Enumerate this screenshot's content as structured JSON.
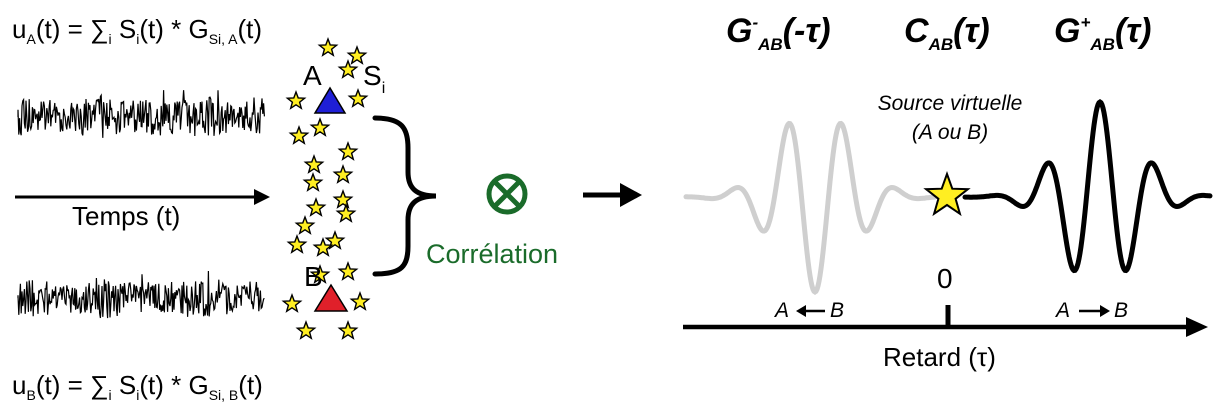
{
  "equations": {
    "uA_lhs": "u",
    "uA_sub": "A",
    "uA_rest": "(t) = ∑",
    "uA_i": "i",
    "uA_mid": "S",
    "uA_i2": "i",
    "uA_tail": "(t) * G",
    "uA_gsub": "Si, A",
    "uA_end": "(t)",
    "uB_lhs": "u",
    "uB_sub": "B",
    "uB_rest": "(t) = ∑",
    "uB_i": "i",
    "uB_mid": "S",
    "uB_i2": "i",
    "uB_tail": "(t) * G",
    "uB_gsub": "Si, B",
    "uB_end": "(t)"
  },
  "labels": {
    "time_axis": "Temps (t)",
    "station_a": "A",
    "station_b": "B",
    "sources": "S",
    "sources_sub": "i",
    "correlation": "Corrélation",
    "g_minus": "G",
    "g_minus_sup": "-",
    "g_minus_sub": "AB",
    "g_minus_arg": "(-τ)",
    "c_ab": "C",
    "c_ab_sub": "AB",
    "c_ab_arg": "(τ)",
    "g_plus": "G",
    "g_plus_sup": "+",
    "g_plus_sub": "AB",
    "g_plus_arg": "(τ)",
    "virtual_source_line1": "Source virtuelle",
    "virtual_source_line2": "(A ou B)",
    "zero": "0",
    "left_arrow_a": "A",
    "left_arrow_b": "B",
    "right_arrow_a": "A",
    "right_arrow_b": "B",
    "lag_axis": "Retard (τ)"
  },
  "colors": {
    "station_a": "#1f1fd6",
    "station_b": "#e0202a",
    "star": "#ffee22",
    "correlation": "#1a6b2a",
    "acausal_wave": "#cfcfcf",
    "causal_wave": "#000000"
  },
  "icons": {
    "correlation_symbol": "circled-times-icon",
    "source_symbol": "star-icon"
  }
}
